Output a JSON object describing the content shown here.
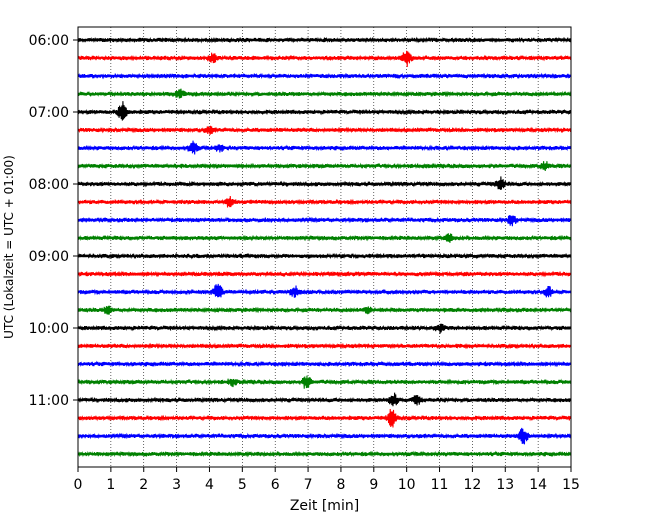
{
  "chart_data": {
    "type": "line",
    "xlabel": "Zeit  [min]",
    "ylabel": "UTC (Lokalzeit = UTC + 01:00)",
    "xlim": [
      0,
      15
    ],
    "x_ticks": [
      "0",
      "1",
      "2",
      "3",
      "4",
      "5",
      "6",
      "7",
      "8",
      "9",
      "10",
      "11",
      "12",
      "13",
      "14",
      "15"
    ],
    "y_ticks": [
      "06:00",
      "07:00",
      "08:00",
      "09:00",
      "10:00",
      "11:00"
    ],
    "grid": "vertical dotted",
    "colors": [
      "#000000",
      "#ff0000",
      "#0000ff",
      "#008000"
    ],
    "trace_interval_minutes": 15,
    "traces": [
      {
        "start": "06:00",
        "color": "#000000",
        "events": []
      },
      {
        "start": "06:15",
        "color": "#ff0000",
        "events": [
          {
            "t": 10.0,
            "amp": 0.45
          },
          {
            "t": 4.1,
            "amp": 0.25
          }
        ]
      },
      {
        "start": "06:30",
        "color": "#0000ff",
        "events": []
      },
      {
        "start": "06:45",
        "color": "#008000",
        "events": [
          {
            "t": 3.1,
            "amp": 0.25
          }
        ]
      },
      {
        "start": "07:00",
        "color": "#000000",
        "events": [
          {
            "t": 1.35,
            "amp": 0.6
          }
        ]
      },
      {
        "start": "07:15",
        "color": "#ff0000",
        "events": [
          {
            "t": 4.0,
            "amp": 0.2
          }
        ]
      },
      {
        "start": "07:30",
        "color": "#0000ff",
        "events": [
          {
            "t": 3.5,
            "amp": 0.35
          },
          {
            "t": 4.3,
            "amp": 0.2
          }
        ]
      },
      {
        "start": "07:45",
        "color": "#008000",
        "events": [
          {
            "t": 14.2,
            "amp": 0.25
          }
        ]
      },
      {
        "start": "08:00",
        "color": "#000000",
        "events": [
          {
            "t": 12.85,
            "amp": 0.4
          }
        ]
      },
      {
        "start": "08:15",
        "color": "#ff0000",
        "events": [
          {
            "t": 4.6,
            "amp": 0.3
          }
        ]
      },
      {
        "start": "08:30",
        "color": "#0000ff",
        "events": [
          {
            "t": 13.2,
            "amp": 0.3
          }
        ]
      },
      {
        "start": "08:45",
        "color": "#008000",
        "events": [
          {
            "t": 11.3,
            "amp": 0.2
          }
        ]
      },
      {
        "start": "09:00",
        "color": "#000000",
        "events": []
      },
      {
        "start": "09:15",
        "color": "#ff0000",
        "events": []
      },
      {
        "start": "09:30",
        "color": "#0000ff",
        "events": [
          {
            "t": 4.25,
            "amp": 0.5
          },
          {
            "t": 6.6,
            "amp": 0.3
          },
          {
            "t": 14.3,
            "amp": 0.3
          }
        ]
      },
      {
        "start": "09:45",
        "color": "#008000",
        "events": [
          {
            "t": 0.9,
            "amp": 0.2
          },
          {
            "t": 8.8,
            "amp": 0.2
          }
        ]
      },
      {
        "start": "10:00",
        "color": "#000000",
        "events": [
          {
            "t": 11.0,
            "amp": 0.25
          }
        ]
      },
      {
        "start": "10:15",
        "color": "#ff0000",
        "events": []
      },
      {
        "start": "10:30",
        "color": "#0000ff",
        "events": []
      },
      {
        "start": "10:45",
        "color": "#008000",
        "events": [
          {
            "t": 6.95,
            "amp": 0.4
          },
          {
            "t": 4.7,
            "amp": 0.2
          }
        ]
      },
      {
        "start": "11:00",
        "color": "#000000",
        "events": [
          {
            "t": 9.6,
            "amp": 0.4
          },
          {
            "t": 10.3,
            "amp": 0.25
          }
        ]
      },
      {
        "start": "11:15",
        "color": "#ff0000",
        "events": [
          {
            "t": 9.55,
            "amp": 0.5
          }
        ]
      },
      {
        "start": "11:30",
        "color": "#0000ff",
        "events": [
          {
            "t": 13.55,
            "amp": 0.5
          }
        ]
      },
      {
        "start": "11:45",
        "color": "#008000",
        "events": []
      }
    ]
  }
}
